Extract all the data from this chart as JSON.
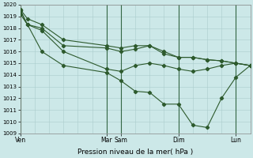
{
  "xlabel": "Pression niveau de la mer( hPa )",
  "bg_color": "#cce8e8",
  "line_color": "#2d5a2d",
  "ylim": [
    1009,
    1020
  ],
  "xlim": [
    0,
    96
  ],
  "yticks": [
    1009,
    1010,
    1011,
    1012,
    1013,
    1014,
    1015,
    1016,
    1017,
    1018,
    1019,
    1020
  ],
  "xtick_positions": [
    0,
    36,
    42,
    66,
    90
  ],
  "xtick_labels": [
    "Ven",
    "Mar",
    "Sam",
    "Dim",
    "Lun"
  ],
  "vline_positions": [
    0,
    36,
    42,
    66,
    90
  ],
  "series": [
    {
      "x": [
        0,
        3,
        9,
        18,
        36,
        42,
        48,
        54,
        60,
        66,
        72,
        78,
        84,
        90,
        96
      ],
      "y": [
        1019.6,
        1018.8,
        1018.3,
        1017.0,
        1016.5,
        1016.3,
        1016.5,
        1016.5,
        1016.0,
        1015.5,
        1015.5,
        1015.3,
        1015.2,
        1015.0,
        1014.8
      ]
    },
    {
      "x": [
        0,
        3,
        9,
        18,
        36,
        42,
        48,
        54,
        60,
        66,
        72,
        78,
        84,
        90,
        96
      ],
      "y": [
        1019.5,
        1018.3,
        1018.0,
        1016.5,
        1016.3,
        1016.0,
        1016.2,
        1016.5,
        1015.8,
        1015.5,
        1015.5,
        1015.3,
        1015.2,
        1015.0,
        1014.8
      ]
    },
    {
      "x": [
        0,
        3,
        9,
        18,
        36,
        42,
        48,
        54,
        60,
        66,
        72,
        78,
        84,
        90,
        96
      ],
      "y": [
        1019.5,
        1018.3,
        1017.8,
        1016.0,
        1014.5,
        1014.3,
        1014.8,
        1015.0,
        1014.8,
        1014.5,
        1014.3,
        1014.5,
        1014.8,
        1015.0,
        1014.8
      ]
    },
    {
      "x": [
        0,
        3,
        9,
        18,
        36,
        42,
        48,
        54,
        60,
        66,
        72,
        78,
        84,
        90,
        96
      ],
      "y": [
        1019.2,
        1018.3,
        1016.0,
        1014.8,
        1014.2,
        1013.5,
        1012.6,
        1012.5,
        1011.5,
        1011.5,
        1009.7,
        1009.5,
        1012.0,
        1013.8,
        1014.8
      ]
    }
  ]
}
